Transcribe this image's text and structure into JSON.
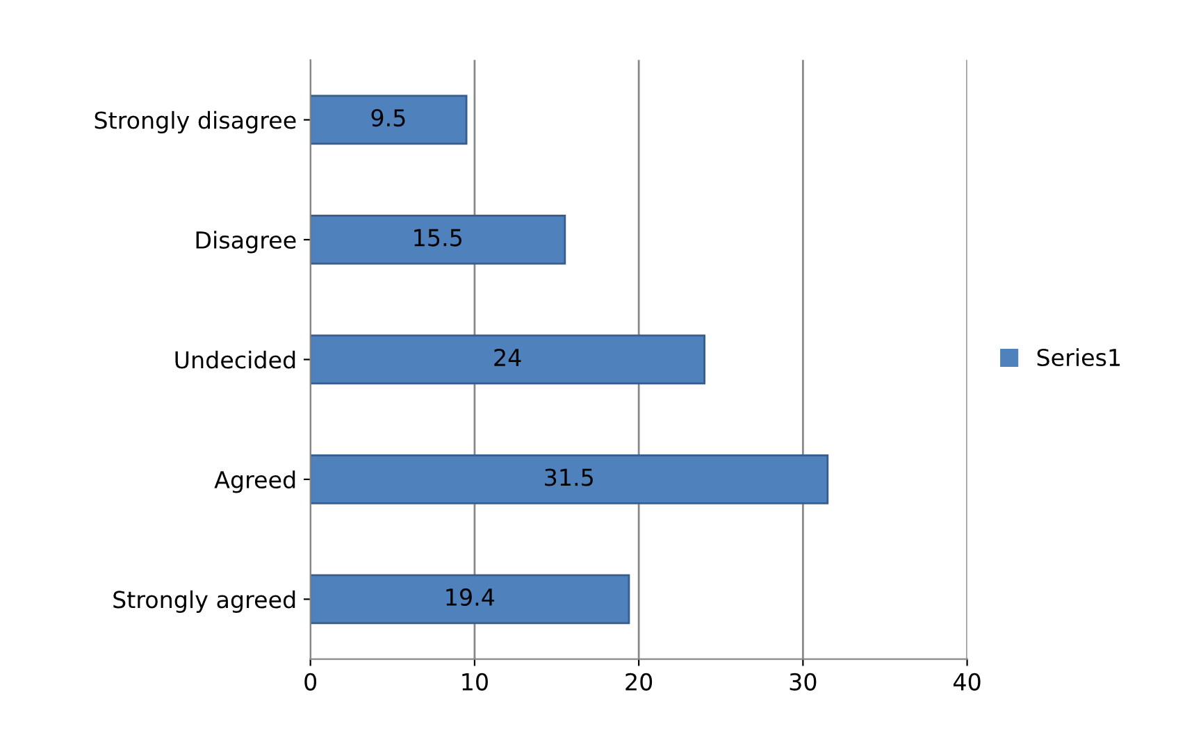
{
  "chart_data": {
    "type": "bar",
    "orientation": "horizontal",
    "categories": [
      "Strongly disagree",
      "Disagree",
      "Undecided",
      "Agreed",
      "Strongly agreed"
    ],
    "series": [
      {
        "name": "Series1",
        "color": "#4f81bd",
        "values": [
          9.5,
          15.5,
          24,
          31.5,
          19.4
        ]
      }
    ],
    "xlim": [
      0,
      40
    ],
    "xticks": [
      0,
      10,
      20,
      30,
      40
    ],
    "grid": "x",
    "legend": "right",
    "data_labels": true
  }
}
